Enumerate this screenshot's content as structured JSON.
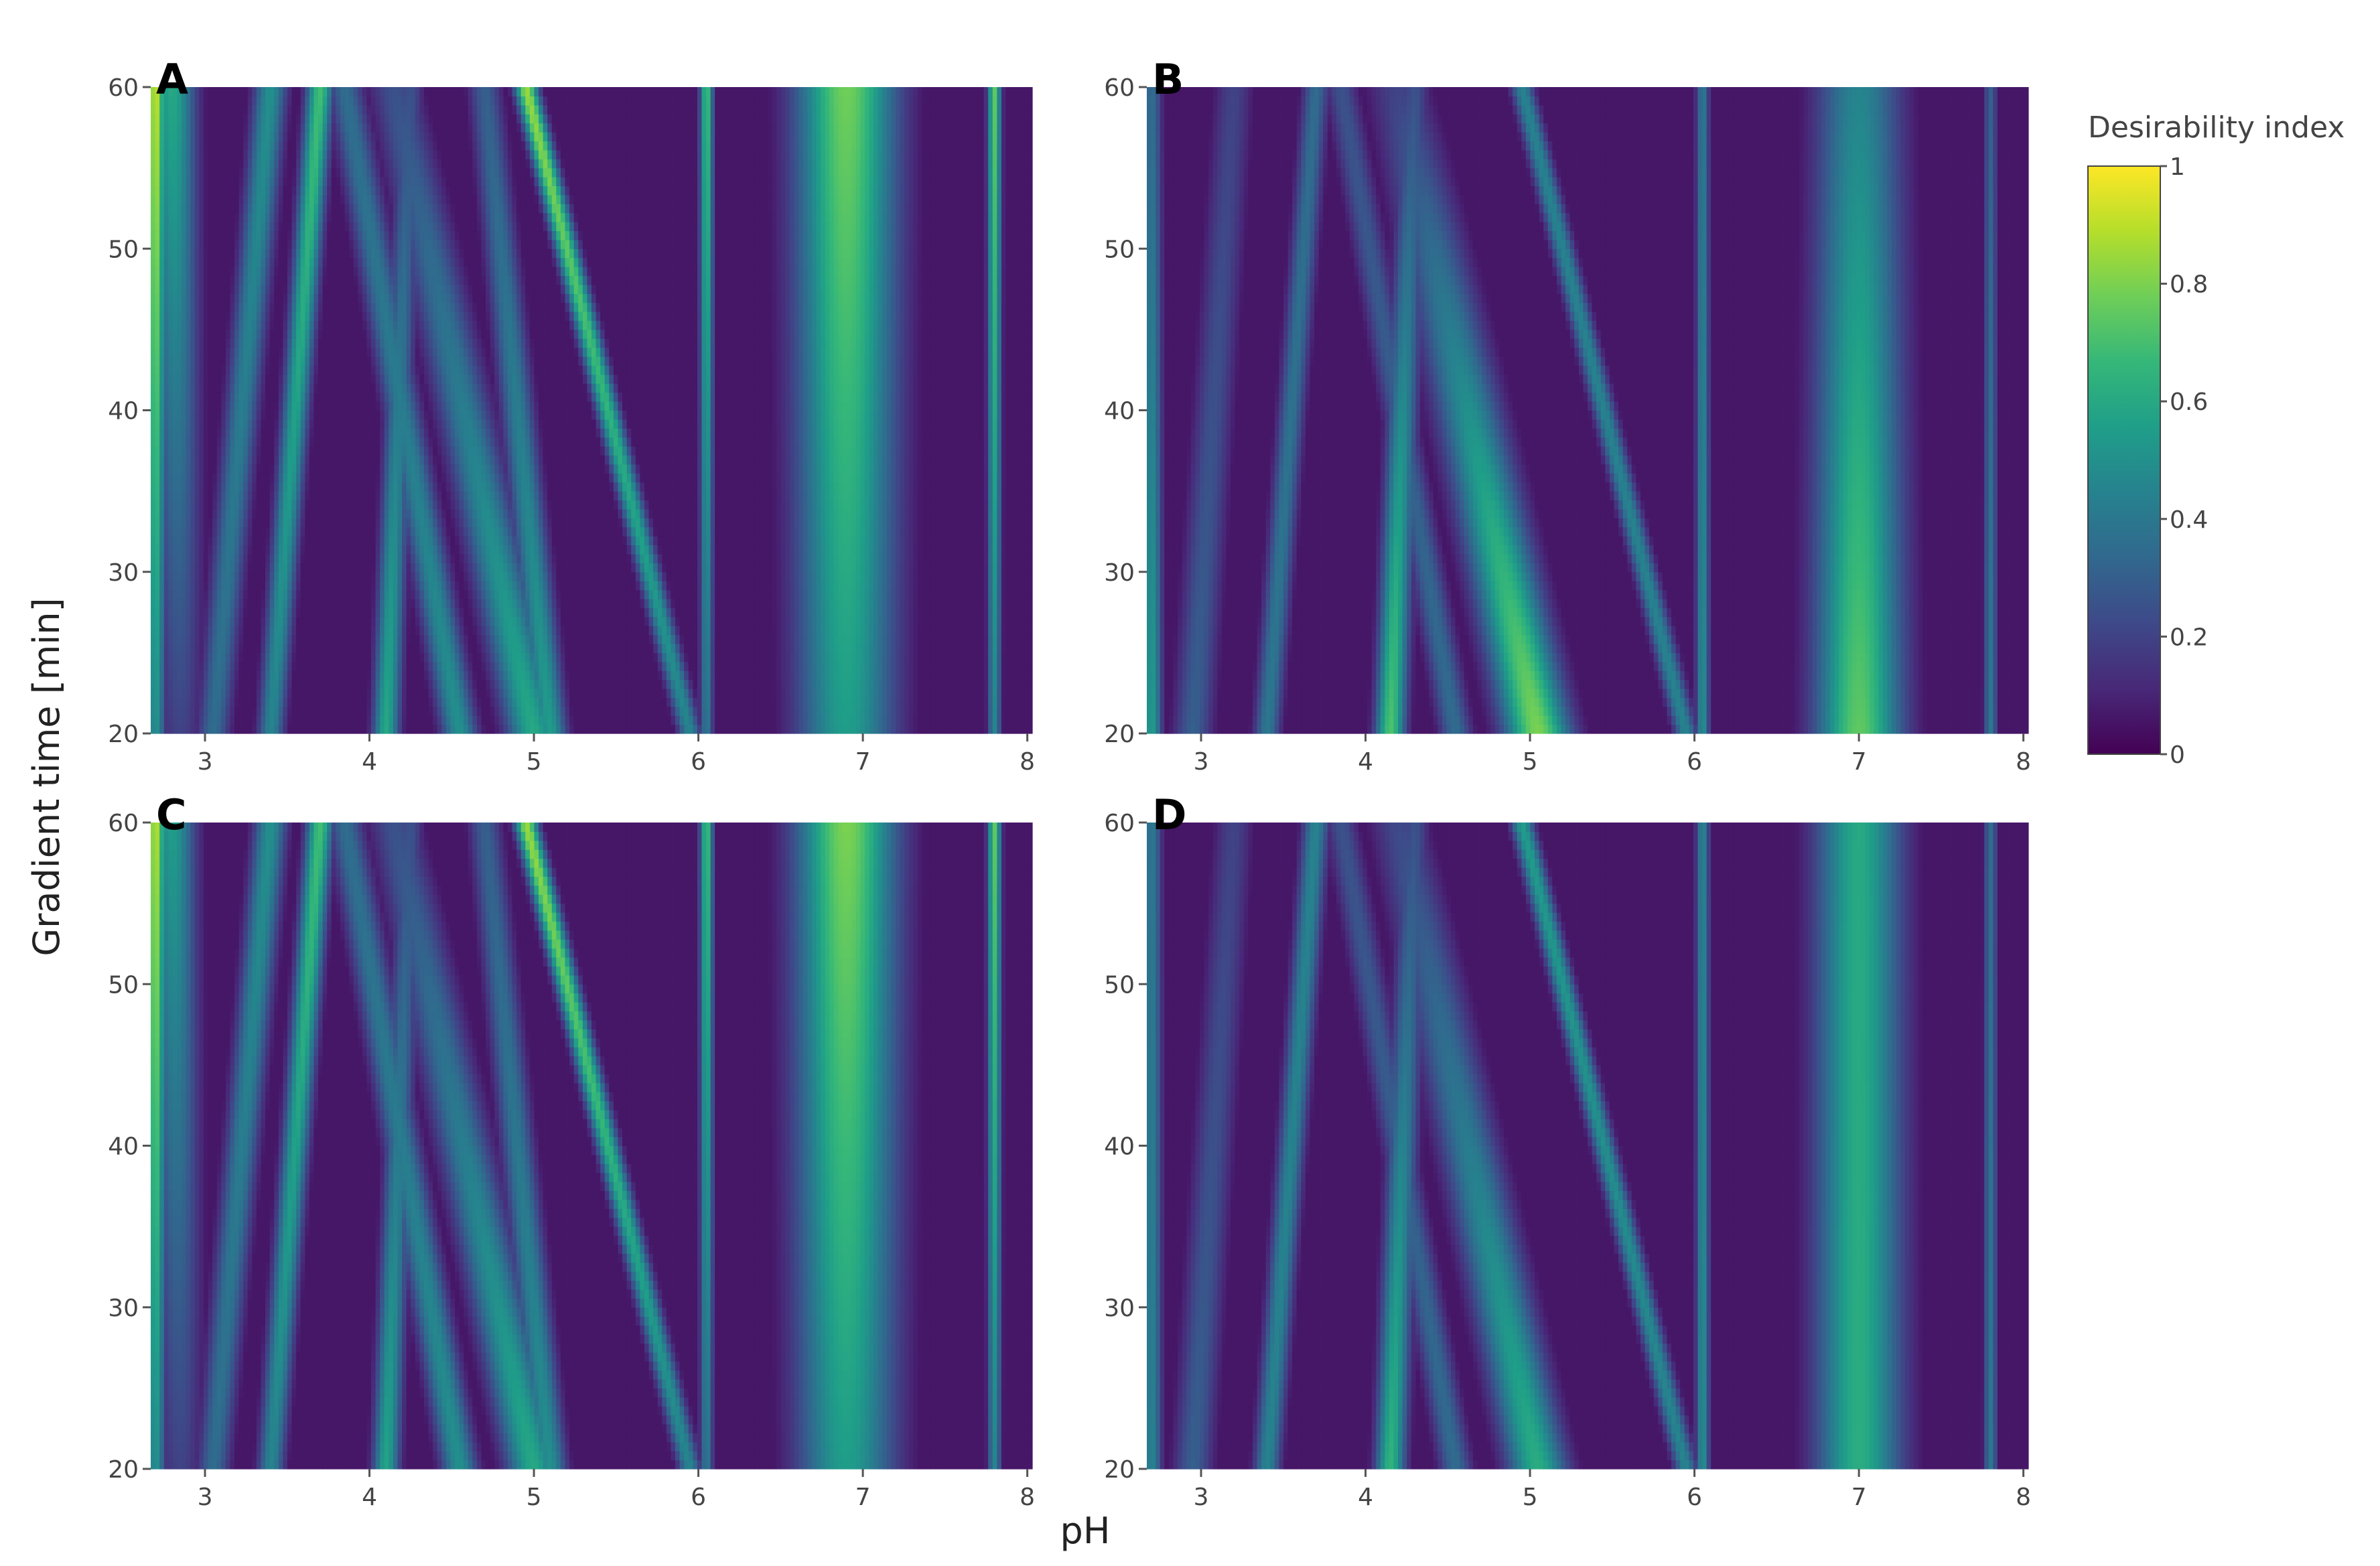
{
  "chart_data": [
    {
      "type": "heatmap",
      "panel_label": "A",
      "x_ticks": [
        3,
        4,
        5,
        6,
        7,
        8
      ],
      "y_ticks": [
        20,
        30,
        40,
        50,
        60
      ],
      "xlim": [
        2.67,
        8.03
      ],
      "ylim": [
        20,
        60
      ],
      "zlim": [
        0,
        1
      ],
      "colorscale": "viridis",
      "ridges": [
        {
          "x_at_20": 2.7,
          "x_at_60": 2.7,
          "width": 0.06,
          "peak_at_20": 0.5,
          "peak_at_60": 0.92
        },
        {
          "x_at_20": 2.85,
          "x_at_60": 2.8,
          "width": 0.14,
          "peak_at_20": 0.2,
          "peak_at_60": 0.6
        },
        {
          "x_at_20": 3.05,
          "x_at_60": 3.4,
          "width": 0.1,
          "peak_at_20": 0.35,
          "peak_at_60": 0.5
        },
        {
          "x_at_20": 3.4,
          "x_at_60": 3.7,
          "width": 0.08,
          "peak_at_20": 0.45,
          "peak_at_60": 0.7
        },
        {
          "x_at_20": 4.1,
          "x_at_60": 4.25,
          "width": 0.08,
          "peak_at_20": 0.6,
          "peak_at_60": 0.25
        },
        {
          "x_at_20": 4.55,
          "x_at_60": 3.85,
          "width": 0.11,
          "peak_at_20": 0.5,
          "peak_at_60": 0.35
        },
        {
          "x_at_20": 5.0,
          "x_at_60": 4.15,
          "width": 0.16,
          "peak_at_20": 0.6,
          "peak_at_60": 0.25
        },
        {
          "x_at_20": 5.1,
          "x_at_60": 4.7,
          "width": 0.1,
          "peak_at_20": 0.55,
          "peak_at_60": 0.3
        },
        {
          "x_at_20": 5.95,
          "x_at_60": 4.95,
          "width": 0.07,
          "peak_at_20": 0.45,
          "peak_at_60": 0.85
        },
        {
          "x_at_20": 6.05,
          "x_at_60": 6.05,
          "width": 0.04,
          "peak_at_20": 0.4,
          "peak_at_60": 0.7
        },
        {
          "x_at_20": 6.9,
          "x_at_60": 6.9,
          "width": 0.3,
          "peak_at_20": 0.55,
          "peak_at_60": 0.78
        },
        {
          "x_at_20": 7.8,
          "x_at_60": 7.8,
          "width": 0.04,
          "peak_at_20": 0.45,
          "peak_at_60": 0.75
        }
      ]
    },
    {
      "type": "heatmap",
      "panel_label": "B",
      "x_ticks": [
        3,
        4,
        5,
        6,
        7,
        8
      ],
      "y_ticks": [
        20,
        30,
        40,
        50,
        60
      ],
      "xlim": [
        2.67,
        8.03
      ],
      "ylim": [
        20,
        60
      ],
      "zlim": [
        0,
        1
      ],
      "colorscale": "viridis",
      "ridges": [
        {
          "x_at_20": 2.7,
          "x_at_60": 2.7,
          "width": 0.06,
          "peak_at_20": 0.55,
          "peak_at_60": 0.35
        },
        {
          "x_at_20": 2.95,
          "x_at_60": 3.2,
          "width": 0.12,
          "peak_at_20": 0.3,
          "peak_at_60": 0.2
        },
        {
          "x_at_20": 3.4,
          "x_at_60": 3.7,
          "width": 0.08,
          "peak_at_20": 0.4,
          "peak_at_60": 0.35
        },
        {
          "x_at_20": 4.15,
          "x_at_60": 4.3,
          "width": 0.09,
          "peak_at_20": 0.72,
          "peak_at_60": 0.25
        },
        {
          "x_at_20": 4.55,
          "x_at_60": 3.85,
          "width": 0.1,
          "peak_at_20": 0.35,
          "peak_at_60": 0.25
        },
        {
          "x_at_20": 5.05,
          "x_at_60": 4.2,
          "width": 0.2,
          "peak_at_20": 0.8,
          "peak_at_60": 0.2
        },
        {
          "x_at_20": 5.95,
          "x_at_60": 4.95,
          "width": 0.07,
          "peak_at_20": 0.45,
          "peak_at_60": 0.45
        },
        {
          "x_at_20": 6.05,
          "x_at_60": 6.05,
          "width": 0.04,
          "peak_at_20": 0.5,
          "peak_at_60": 0.4
        },
        {
          "x_at_20": 7.0,
          "x_at_60": 7.0,
          "width": 0.26,
          "peak_at_20": 0.75,
          "peak_at_60": 0.45
        },
        {
          "x_at_20": 7.8,
          "x_at_60": 7.8,
          "width": 0.04,
          "peak_at_20": 0.4,
          "peak_at_60": 0.3
        }
      ]
    },
    {
      "type": "heatmap",
      "panel_label": "C",
      "x_ticks": [
        3,
        4,
        5,
        6,
        7,
        8
      ],
      "y_ticks": [
        20,
        30,
        40,
        50,
        60
      ],
      "xlim": [
        2.67,
        8.03
      ],
      "ylim": [
        20,
        60
      ],
      "zlim": [
        0,
        1
      ],
      "colorscale": "viridis",
      "ridges": [
        {
          "x_at_20": 2.7,
          "x_at_60": 2.7,
          "width": 0.06,
          "peak_at_20": 0.5,
          "peak_at_60": 0.9
        },
        {
          "x_at_20": 2.85,
          "x_at_60": 2.8,
          "width": 0.14,
          "peak_at_20": 0.2,
          "peak_at_60": 0.55
        },
        {
          "x_at_20": 3.05,
          "x_at_60": 3.4,
          "width": 0.1,
          "peak_at_20": 0.35,
          "peak_at_60": 0.5
        },
        {
          "x_at_20": 3.4,
          "x_at_60": 3.7,
          "width": 0.08,
          "peak_at_20": 0.45,
          "peak_at_60": 0.7
        },
        {
          "x_at_20": 4.1,
          "x_at_60": 4.25,
          "width": 0.08,
          "peak_at_20": 0.58,
          "peak_at_60": 0.25
        },
        {
          "x_at_20": 4.55,
          "x_at_60": 3.85,
          "width": 0.11,
          "peak_at_20": 0.5,
          "peak_at_60": 0.35
        },
        {
          "x_at_20": 5.0,
          "x_at_60": 4.15,
          "width": 0.16,
          "peak_at_20": 0.6,
          "peak_at_60": 0.25
        },
        {
          "x_at_20": 5.1,
          "x_at_60": 4.7,
          "width": 0.1,
          "peak_at_20": 0.5,
          "peak_at_60": 0.3
        },
        {
          "x_at_20": 5.95,
          "x_at_60": 4.95,
          "width": 0.07,
          "peak_at_20": 0.45,
          "peak_at_60": 0.85
        },
        {
          "x_at_20": 6.05,
          "x_at_60": 6.05,
          "width": 0.04,
          "peak_at_20": 0.4,
          "peak_at_60": 0.7
        },
        {
          "x_at_20": 6.9,
          "x_at_60": 6.9,
          "width": 0.3,
          "peak_at_20": 0.55,
          "peak_at_60": 0.8
        },
        {
          "x_at_20": 7.8,
          "x_at_60": 7.8,
          "width": 0.04,
          "peak_at_20": 0.45,
          "peak_at_60": 0.75
        }
      ]
    },
    {
      "type": "heatmap",
      "panel_label": "D",
      "x_ticks": [
        3,
        4,
        5,
        6,
        7,
        8
      ],
      "y_ticks": [
        20,
        30,
        40,
        50,
        60
      ],
      "xlim": [
        2.67,
        8.03
      ],
      "ylim": [
        20,
        60
      ],
      "zlim": [
        0,
        1
      ],
      "colorscale": "viridis",
      "ridges": [
        {
          "x_at_20": 2.7,
          "x_at_60": 2.7,
          "width": 0.06,
          "peak_at_20": 0.45,
          "peak_at_60": 0.4
        },
        {
          "x_at_20": 2.95,
          "x_at_60": 3.2,
          "width": 0.12,
          "peak_at_20": 0.3,
          "peak_at_60": 0.2
        },
        {
          "x_at_20": 3.4,
          "x_at_60": 3.7,
          "width": 0.08,
          "peak_at_20": 0.45,
          "peak_at_60": 0.45
        },
        {
          "x_at_20": 4.15,
          "x_at_60": 4.3,
          "width": 0.09,
          "peak_at_20": 0.65,
          "peak_at_60": 0.25
        },
        {
          "x_at_20": 4.55,
          "x_at_60": 3.85,
          "width": 0.1,
          "peak_at_20": 0.35,
          "peak_at_60": 0.25
        },
        {
          "x_at_20": 5.05,
          "x_at_60": 4.2,
          "width": 0.18,
          "peak_at_20": 0.62,
          "peak_at_60": 0.22
        },
        {
          "x_at_20": 5.95,
          "x_at_60": 4.95,
          "width": 0.07,
          "peak_at_20": 0.45,
          "peak_at_60": 0.55
        },
        {
          "x_at_20": 6.05,
          "x_at_60": 6.05,
          "width": 0.04,
          "peak_at_20": 0.5,
          "peak_at_60": 0.45
        },
        {
          "x_at_20": 7.0,
          "x_at_60": 7.0,
          "width": 0.26,
          "peak_at_20": 0.62,
          "peak_at_60": 0.6
        },
        {
          "x_at_20": 7.8,
          "x_at_60": 7.8,
          "width": 0.04,
          "peak_at_20": 0.4,
          "peak_at_60": 0.35
        }
      ]
    }
  ],
  "axes": {
    "xlabel": "pH",
    "ylabel": "Gradient time [min]"
  },
  "colorbar": {
    "title": "Desirability index",
    "ticks": [
      0,
      0.2,
      0.4,
      0.6,
      0.8,
      1
    ],
    "tick_labels": [
      "0",
      "0.2",
      "0.4",
      "0.6",
      "0.8",
      "1"
    ],
    "colors": [
      "#440154",
      "#482878",
      "#3e4989",
      "#31688e",
      "#26828e",
      "#1f9e89",
      "#35b779",
      "#6ece58",
      "#b5de2b",
      "#fde725"
    ]
  }
}
